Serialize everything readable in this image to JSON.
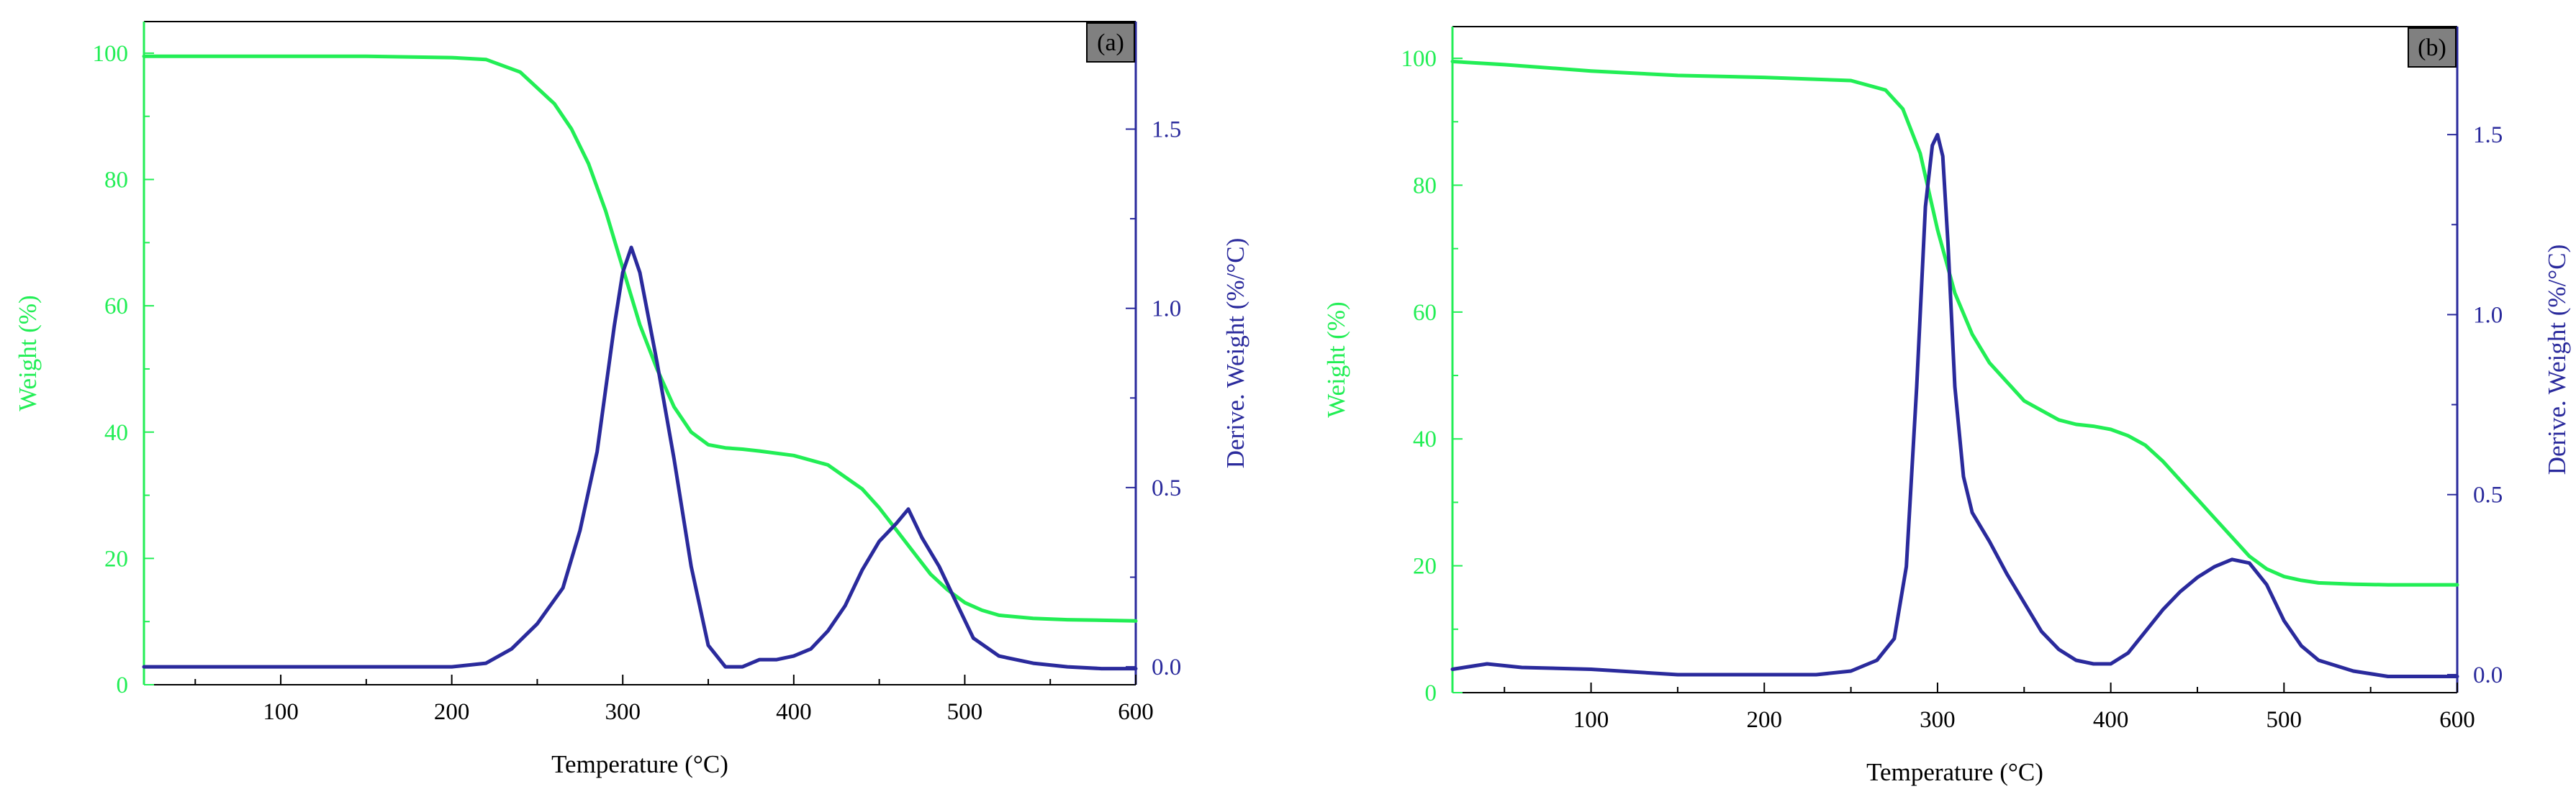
{
  "colors": {
    "weight": "#22ee55",
    "deriv": "#2a2a9c",
    "frame": "#000000",
    "label_box_fill": "#808080"
  },
  "chart_data": [
    {
      "type": "line",
      "panel_label": "(a)",
      "xlabel": "Temperature (°C)",
      "ylabel_left": "Weight (%)",
      "ylabel_right": "Derive. Weight (%/°C)",
      "xlim": [
        20,
        600
      ],
      "ylim_left": [
        0,
        105
      ],
      "ylim_right": [
        -0.05,
        1.8
      ],
      "x_ticks": [
        100,
        200,
        300,
        400,
        500,
        600
      ],
      "y_ticks_left": [
        0,
        20,
        40,
        60,
        80,
        100
      ],
      "y_ticks_right": [
        0.0,
        0.5,
        1.0,
        1.5
      ],
      "y_tick_labels_right": [
        "0.0",
        "0.5",
        "1.0",
        "1.5"
      ],
      "grid": false,
      "series": [
        {
          "axis": "left",
          "color_key": "weight",
          "x": [
            20,
            50,
            100,
            150,
            200,
            220,
            240,
            260,
            270,
            280,
            290,
            300,
            310,
            320,
            330,
            340,
            350,
            360,
            370,
            380,
            400,
            420,
            440,
            450,
            460,
            470,
            480,
            490,
            500,
            510,
            520,
            540,
            560,
            580,
            600
          ],
          "y": [
            99.5,
            99.5,
            99.5,
            99.5,
            99.3,
            99.0,
            97.0,
            92.0,
            88.0,
            82.5,
            75.0,
            66.0,
            57.0,
            50.0,
            44.0,
            40.0,
            38.0,
            37.5,
            37.3,
            37.0,
            36.3,
            34.8,
            31.0,
            28.0,
            24.5,
            21.0,
            17.5,
            15.0,
            13.0,
            11.8,
            11.0,
            10.5,
            10.3,
            10.2,
            10.1
          ]
        },
        {
          "axis": "right",
          "color_key": "deriv",
          "x": [
            20,
            100,
            200,
            220,
            235,
            250,
            265,
            275,
            285,
            295,
            300,
            305,
            310,
            320,
            330,
            340,
            350,
            360,
            370,
            380,
            390,
            400,
            410,
            420,
            430,
            440,
            450,
            460,
            467,
            475,
            485,
            495,
            505,
            520,
            540,
            560,
            580,
            600
          ],
          "y": [
            0.0,
            0.0,
            0.0,
            0.01,
            0.05,
            0.12,
            0.22,
            0.38,
            0.6,
            0.95,
            1.1,
            1.17,
            1.1,
            0.85,
            0.58,
            0.28,
            0.06,
            0.0,
            0.0,
            0.02,
            0.02,
            0.03,
            0.05,
            0.1,
            0.17,
            0.27,
            0.35,
            0.4,
            0.44,
            0.36,
            0.28,
            0.18,
            0.08,
            0.03,
            0.01,
            0.0,
            -0.005,
            -0.005
          ]
        }
      ]
    },
    {
      "type": "line",
      "panel_label": "(b)",
      "xlabel": "Temperature (°C)",
      "ylabel_left": "Weight (%)",
      "ylabel_right": "Derive. Weight (%/°C)",
      "xlim": [
        20,
        600
      ],
      "ylim_left": [
        0,
        105
      ],
      "ylim_right": [
        -0.05,
        1.8
      ],
      "x_ticks": [
        100,
        200,
        300,
        400,
        500,
        600
      ],
      "y_ticks_left": [
        0,
        20,
        40,
        60,
        80,
        100
      ],
      "y_ticks_right": [
        0.0,
        0.5,
        1.0,
        1.5
      ],
      "y_tick_labels_right": [
        "0.0",
        "0.5",
        "1.0",
        "1.5"
      ],
      "grid": false,
      "series": [
        {
          "axis": "left",
          "color_key": "weight",
          "x": [
            20,
            50,
            100,
            150,
            200,
            250,
            270,
            280,
            290,
            300,
            310,
            320,
            330,
            340,
            350,
            360,
            370,
            380,
            390,
            400,
            410,
            420,
            430,
            440,
            450,
            460,
            470,
            480,
            490,
            500,
            510,
            520,
            540,
            560,
            580,
            600
          ],
          "y": [
            99.5,
            99.0,
            98.0,
            97.3,
            97.0,
            96.5,
            95.0,
            92.0,
            85.0,
            73.0,
            63.0,
            56.5,
            52.0,
            49.0,
            46.0,
            44.5,
            43.0,
            42.3,
            42.0,
            41.5,
            40.5,
            39.0,
            36.5,
            33.5,
            30.5,
            27.5,
            24.5,
            21.5,
            19.5,
            18.3,
            17.7,
            17.3,
            17.1,
            17.0,
            17.0,
            17.0
          ]
        },
        {
          "axis": "right",
          "color_key": "deriv",
          "x": [
            20,
            40,
            60,
            100,
            150,
            200,
            230,
            250,
            265,
            275,
            282,
            288,
            293,
            297,
            300,
            303,
            306,
            310,
            315,
            320,
            330,
            340,
            350,
            360,
            370,
            380,
            390,
            400,
            410,
            420,
            430,
            440,
            450,
            460,
            470,
            480,
            490,
            500,
            510,
            520,
            540,
            560,
            580,
            600
          ],
          "y": [
            0.015,
            0.03,
            0.02,
            0.015,
            0.0,
            0.0,
            0.0,
            0.01,
            0.04,
            0.1,
            0.3,
            0.8,
            1.3,
            1.47,
            1.5,
            1.44,
            1.2,
            0.8,
            0.55,
            0.45,
            0.37,
            0.28,
            0.2,
            0.12,
            0.07,
            0.04,
            0.03,
            0.03,
            0.06,
            0.12,
            0.18,
            0.23,
            0.27,
            0.3,
            0.32,
            0.31,
            0.25,
            0.15,
            0.08,
            0.04,
            0.01,
            -0.005,
            -0.005,
            -0.005
          ]
        }
      ]
    }
  ]
}
